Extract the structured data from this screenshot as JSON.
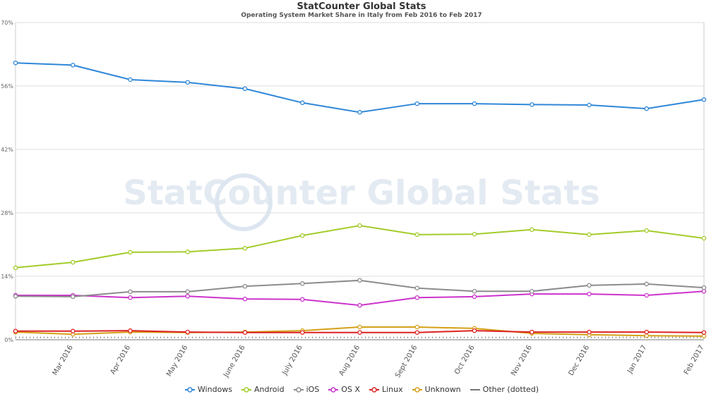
{
  "chart_data": {
    "type": "line",
    "title": "StatCounter Global Stats",
    "subtitle": "Operating System Market Share in Italy from Feb 2016 to Feb 2017",
    "watermark": "StatCounter Global Stats",
    "categories": [
      "Feb 2016",
      "Mar 2016",
      "Apr 2016",
      "May 2016",
      "June 2016",
      "July 2016",
      "Aug 2016",
      "Sept 2016",
      "Oct 2016",
      "Nov 2016",
      "Dec 2016",
      "Jan 2017",
      "Feb 2017"
    ],
    "x_tick_labels": [
      "Mar 2016",
      "Apr 2016",
      "May 2016",
      "June 2016",
      "July 2016",
      "Aug 2016",
      "Sept 2016",
      "Oct 2016",
      "Nov 2016",
      "Dec 2016",
      "Jan 2017",
      "Feb 2017"
    ],
    "ylim": [
      0,
      70
    ],
    "y_ticks": [
      "0%",
      "14%",
      "28%",
      "42%",
      "56%",
      "70%"
    ],
    "grid": true,
    "legend_position": "bottom",
    "series": [
      {
        "name": "Windows",
        "color": "#2f87d8",
        "dotted": false,
        "values": [
          61.1,
          60.6,
          57.4,
          56.8,
          55.4,
          52.3,
          50.2,
          52.1,
          52.1,
          51.9,
          51.8,
          51.0,
          53.0
        ]
      },
      {
        "name": "Android",
        "color": "#a3cc2a",
        "dotted": false,
        "values": [
          15.9,
          17.1,
          19.3,
          19.4,
          20.2,
          23.0,
          25.2,
          23.2,
          23.3,
          24.3,
          23.2,
          24.1,
          22.4
        ]
      },
      {
        "name": "iOS",
        "color": "#8c8c8c",
        "dotted": false,
        "values": [
          9.6,
          9.5,
          10.6,
          10.6,
          11.8,
          12.4,
          13.1,
          11.4,
          10.7,
          10.7,
          12.0,
          12.3,
          11.5
        ]
      },
      {
        "name": "OS X",
        "color": "#cc33cc",
        "dotted": false,
        "values": [
          9.8,
          9.8,
          9.3,
          9.6,
          9.0,
          8.9,
          7.6,
          9.3,
          9.5,
          10.1,
          10.1,
          9.8,
          10.7
        ]
      },
      {
        "name": "Linux",
        "color": "#dd2222",
        "dotted": false,
        "values": [
          1.9,
          1.9,
          2.0,
          1.7,
          1.6,
          1.6,
          1.6,
          1.6,
          2.0,
          1.7,
          1.7,
          1.7,
          1.6
        ]
      },
      {
        "name": "Unknown",
        "color": "#d4a017",
        "dotted": false,
        "values": [
          1.7,
          1.2,
          1.7,
          1.6,
          1.7,
          2.0,
          2.8,
          2.8,
          2.5,
          1.4,
          1.1,
          0.9,
          0.8
        ]
      },
      {
        "name": "Other (dotted)",
        "color": "#777777",
        "dotted": true,
        "values": [
          0.5,
          0.5,
          0.5,
          0.5,
          0.5,
          0.5,
          0.5,
          0.5,
          0.5,
          0.5,
          0.5,
          0.5,
          0.5
        ]
      }
    ]
  }
}
